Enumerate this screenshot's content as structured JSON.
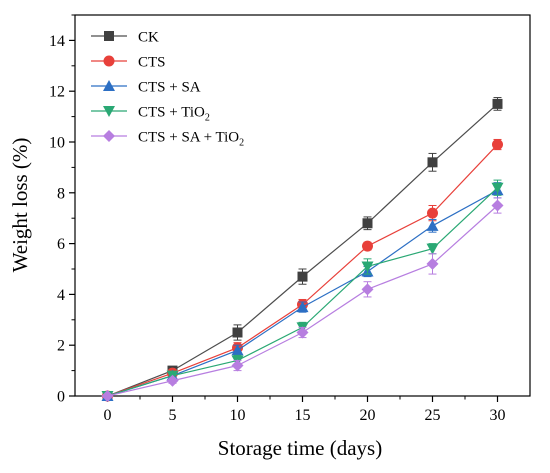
{
  "chart_data": {
    "type": "line",
    "xlabel": "Storage time (days)",
    "ylabel": "Weight loss (%)",
    "x": [
      0,
      5,
      10,
      15,
      20,
      25,
      30
    ],
    "xlim": [
      -2.5,
      32.5
    ],
    "ylim": [
      0,
      15
    ],
    "xticks": [
      0,
      5,
      10,
      15,
      20,
      25,
      30
    ],
    "yticks": [
      0,
      2,
      4,
      6,
      8,
      10,
      12,
      14
    ],
    "grid": false,
    "legend_position": "top-left",
    "series": [
      {
        "name": "CK",
        "name_sub": "",
        "name_tail": "",
        "color": "#404040",
        "line_color": "#4d4d4d",
        "marker": "square",
        "values": [
          0,
          1.0,
          2.5,
          4.7,
          6.8,
          9.2,
          11.5
        ],
        "errors": [
          0,
          0.15,
          0.3,
          0.3,
          0.25,
          0.35,
          0.25
        ]
      },
      {
        "name": "CTS",
        "name_sub": "",
        "name_tail": "",
        "color": "#e8403a",
        "line_color": "#e8403a",
        "marker": "circle",
        "values": [
          0,
          0.9,
          1.9,
          3.6,
          5.9,
          7.2,
          9.9
        ],
        "errors": [
          0,
          0.1,
          0.2,
          0.2,
          0.15,
          0.3,
          0.2
        ]
      },
      {
        "name": "CTS + SA",
        "name_sub": "",
        "name_tail": "",
        "color": "#2c6fc4",
        "line_color": "#2c6fc4",
        "marker": "triangle-up",
        "values": [
          0,
          0.8,
          1.8,
          3.5,
          4.9,
          6.7,
          8.1
        ],
        "errors": [
          0,
          0.1,
          0.2,
          0.2,
          0.2,
          0.25,
          0.3
        ]
      },
      {
        "name": "CTS + TiO",
        "name_sub": "2",
        "name_tail": "",
        "color": "#2aa874",
        "line_color": "#2aa874",
        "marker": "triangle-down",
        "values": [
          0,
          0.8,
          1.4,
          2.7,
          5.1,
          5.8,
          8.2
        ],
        "errors": [
          0,
          0.1,
          0.2,
          0.2,
          0.3,
          0.2,
          0.3
        ]
      },
      {
        "name": "CTS + SA + TiO",
        "name_sub": "2",
        "name_tail": "",
        "color": "#b77ee0",
        "line_color": "#b77ee0",
        "marker": "diamond",
        "values": [
          0,
          0.6,
          1.2,
          2.5,
          4.2,
          5.2,
          7.5
        ],
        "errors": [
          0,
          0.1,
          0.2,
          0.2,
          0.3,
          0.4,
          0.3
        ]
      }
    ]
  }
}
